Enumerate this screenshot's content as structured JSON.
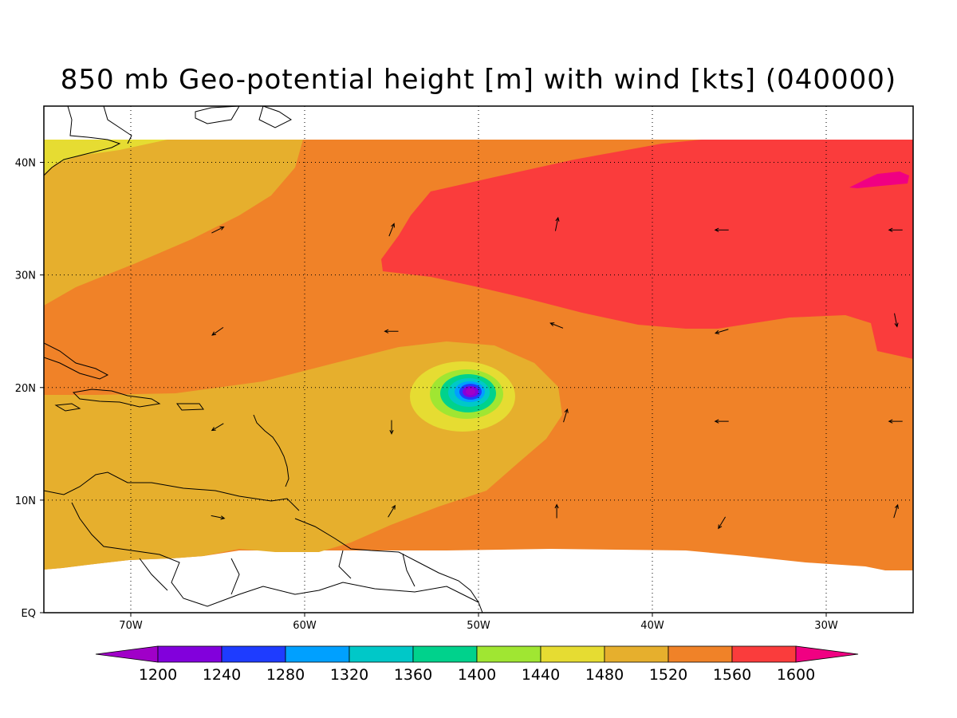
{
  "title": "850 mb Geo-potential height [m] with wind [kts] (040000)",
  "chart_data": {
    "type": "heatmap",
    "title": "850 mb Geo-potential height [m] with wind [kts] (040000)",
    "variable": "850 mb geopotential height",
    "units": "m",
    "overlay": "wind vectors [kts]",
    "time_label": "040000",
    "lon_range": [
      -75,
      -25
    ],
    "lat_range": [
      0,
      45
    ],
    "data_lat_range": [
      4,
      42
    ],
    "grid": true,
    "legend_position": "bottom",
    "xticks": [
      {
        "value": -70,
        "label": "70W"
      },
      {
        "value": -60,
        "label": "60W"
      },
      {
        "value": -50,
        "label": "50W"
      },
      {
        "value": -40,
        "label": "40W"
      },
      {
        "value": -30,
        "label": "30W"
      }
    ],
    "yticks": [
      {
        "value": 0,
        "label": "EQ"
      },
      {
        "value": 10,
        "label": "10N"
      },
      {
        "value": 20,
        "label": "20N"
      },
      {
        "value": 30,
        "label": "30N"
      },
      {
        "value": 40,
        "label": "40N"
      }
    ],
    "colorbar": {
      "levels": [
        "1200",
        "1240",
        "1280",
        "1320",
        "1360",
        "1400",
        "1440",
        "1480",
        "1520",
        "1560",
        "1600"
      ],
      "colors": [
        "#a000c8",
        "#8200dc",
        "#1e3cff",
        "#00a0ff",
        "#00c8c8",
        "#00d28c",
        "#a0e632",
        "#e6dc32",
        "#e6af2d",
        "#f08228",
        "#fa3c3c",
        "#f00082"
      ]
    },
    "features": [
      {
        "name": "low-pressure center",
        "lon": -50.5,
        "lat": 19.5,
        "min_height_band": "<1200"
      },
      {
        "name": "high-pressure ridge",
        "lon_range": [
          -55,
          -25
        ],
        "lat_range": [
          25,
          42
        ],
        "height_band": "1560-1600"
      }
    ],
    "wind_vectors": [
      {
        "lon": -65,
        "lat": 34,
        "u": 1,
        "v": 0.5
      },
      {
        "lon": -55,
        "lat": 34,
        "u": 0.4,
        "v": 1
      },
      {
        "lon": -45.5,
        "lat": 34.5,
        "u": 0.2,
        "v": 1
      },
      {
        "lon": -36,
        "lat": 34,
        "u": -1,
        "v": 0
      },
      {
        "lon": -26,
        "lat": 34,
        "u": -1,
        "v": 0
      },
      {
        "lon": -65,
        "lat": 25,
        "u": -1,
        "v": -0.7
      },
      {
        "lon": -55,
        "lat": 25,
        "u": -1,
        "v": 0
      },
      {
        "lon": -45.5,
        "lat": 25.5,
        "u": -1,
        "v": 0.4
      },
      {
        "lon": -36,
        "lat": 25,
        "u": -1,
        "v": -0.3
      },
      {
        "lon": -26,
        "lat": 26,
        "u": 0.2,
        "v": -1
      },
      {
        "lon": -65,
        "lat": 16.5,
        "u": -1,
        "v": -0.6
      },
      {
        "lon": -55,
        "lat": 16.5,
        "u": 0,
        "v": -1
      },
      {
        "lon": -45,
        "lat": 17.5,
        "u": 0.3,
        "v": 1
      },
      {
        "lon": -36,
        "lat": 17,
        "u": -1,
        "v": 0
      },
      {
        "lon": -26,
        "lat": 17,
        "u": -1,
        "v": 0
      },
      {
        "lon": -65,
        "lat": 8.5,
        "u": 1,
        "v": -0.2
      },
      {
        "lon": -55,
        "lat": 9,
        "u": 0.6,
        "v": 1
      },
      {
        "lon": -45.5,
        "lat": 9,
        "u": 0,
        "v": 1
      },
      {
        "lon": -36,
        "lat": 8,
        "u": -0.6,
        "v": -1
      },
      {
        "lon": -26,
        "lat": 9,
        "u": 0.3,
        "v": 1
      }
    ]
  }
}
